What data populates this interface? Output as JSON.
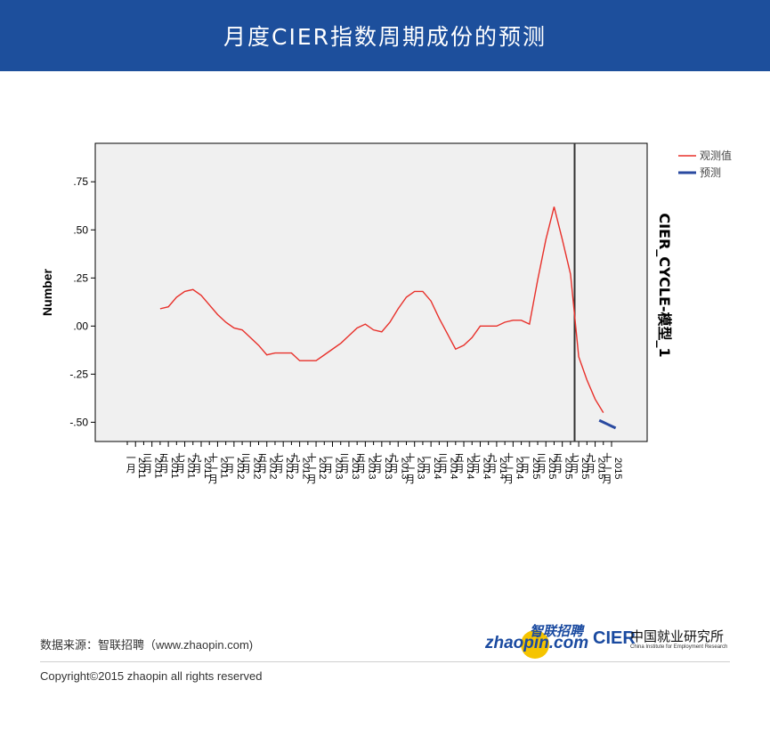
{
  "header": {
    "title": "月度CIER指数周期成份的预测"
  },
  "footer": {
    "source": "数据来源：智联招聘（www.zhaopin.com)",
    "copyright": "Copyright©2015 zhaopin all rights reserved"
  },
  "logos": {
    "zhaopin_cn": "智联招聘",
    "zhaopin_en": "zhaopin.com",
    "cier_mark": "CIER",
    "cier_cn": "中国就业研究所",
    "cier_en": "China Institute for Employment Research"
  },
  "colors": {
    "header_bg": "#1d4f9c",
    "observed": "#e8302a",
    "forecast": "#2a4aa0",
    "plot_bg": "#f0f0f0"
  },
  "chart_data": {
    "type": "line",
    "ylabel": "Number",
    "right_label": "CIER_CYCLE-模型_1",
    "ylim": [
      -0.6,
      0.95
    ],
    "yticks": [
      {
        "value": 0.75,
        "label": ".75"
      },
      {
        "value": 0.5,
        "label": ".50"
      },
      {
        "value": 0.25,
        "label": ".25"
      },
      {
        "value": 0.0,
        "label": ".00"
      },
      {
        "value": -0.25,
        "label": "-.25"
      },
      {
        "value": -0.5,
        "label": "-.50"
      }
    ],
    "x_range": [
      0,
      59
    ],
    "forecast_start": 54.5,
    "xtick_labels": [
      {
        "pos": 1,
        "month": "一月",
        "year": "2011"
      },
      {
        "pos": 3,
        "month": "三月",
        "year": "2011"
      },
      {
        "pos": 5,
        "month": "五月",
        "year": "2011"
      },
      {
        "pos": 7,
        "month": "七月",
        "year": "2011"
      },
      {
        "pos": 9,
        "month": "九月",
        "year": "2011"
      },
      {
        "pos": 11,
        "month": "十一月",
        "year": "2011"
      },
      {
        "pos": 13,
        "month": "一月",
        "year": "2012"
      },
      {
        "pos": 15,
        "month": "三月",
        "year": "2012"
      },
      {
        "pos": 17,
        "month": "五月",
        "year": "2012"
      },
      {
        "pos": 19,
        "month": "七月",
        "year": "2012"
      },
      {
        "pos": 21,
        "month": "九月",
        "year": "2012"
      },
      {
        "pos": 23,
        "month": "十一月",
        "year": "2012"
      },
      {
        "pos": 25,
        "month": "一月",
        "year": "2013"
      },
      {
        "pos": 27,
        "month": "三月",
        "year": "2013"
      },
      {
        "pos": 29,
        "month": "五月",
        "year": "2013"
      },
      {
        "pos": 31,
        "month": "七月",
        "year": "2013"
      },
      {
        "pos": 33,
        "month": "九月",
        "year": "2013"
      },
      {
        "pos": 35,
        "month": "十一月",
        "year": "2013"
      },
      {
        "pos": 37,
        "month": "一月",
        "year": "2014"
      },
      {
        "pos": 39,
        "month": "三月",
        "year": "2014"
      },
      {
        "pos": 41,
        "month": "五月",
        "year": "2014"
      },
      {
        "pos": 43,
        "month": "七月",
        "year": "2014"
      },
      {
        "pos": 45,
        "month": "九月",
        "year": "2014"
      },
      {
        "pos": 47,
        "month": "十一月",
        "year": "2014"
      },
      {
        "pos": 49,
        "month": "一月",
        "year": "2015"
      },
      {
        "pos": 51,
        "month": "三月",
        "year": "2015"
      },
      {
        "pos": 53,
        "month": "五月",
        "year": "2015"
      },
      {
        "pos": 55,
        "month": "七月",
        "year": "2015"
      },
      {
        "pos": 57,
        "month": "九月",
        "year": "2015"
      },
      {
        "pos": 59,
        "month": "十一月",
        "year": "2015"
      }
    ],
    "series": [
      {
        "name": "观测值",
        "color": "#e8302a",
        "x": [
          4,
          5,
          6,
          7,
          8,
          9,
          10,
          11,
          12,
          13,
          14,
          15,
          16,
          17,
          18,
          19,
          20,
          21,
          22,
          23,
          24,
          25,
          26,
          27,
          28,
          29,
          30,
          31,
          32,
          33,
          34,
          35,
          36,
          37,
          38,
          39,
          40,
          41,
          42,
          43,
          44,
          45,
          46,
          47,
          48,
          49,
          50,
          51,
          52,
          53,
          54
        ],
        "values": [
          0.09,
          0.1,
          0.15,
          0.18,
          0.19,
          0.16,
          0.11,
          0.06,
          0.02,
          -0.01,
          -0.02,
          -0.06,
          -0.1,
          -0.15,
          -0.14,
          -0.14,
          -0.14,
          -0.18,
          -0.18,
          -0.18,
          -0.15,
          -0.12,
          -0.09,
          -0.05,
          -0.01,
          0.01,
          -0.02,
          -0.03,
          0.02,
          0.09,
          0.15,
          0.18,
          0.18,
          0.13,
          0.04,
          -0.04,
          -0.12,
          -0.1,
          -0.06,
          0.0,
          0.0,
          0.0,
          0.02,
          0.03,
          0.03,
          0.01,
          0.24,
          0.45,
          0.62,
          0.45,
          0.27
        ]
      },
      {
        "name": "预测",
        "color": "#2a4aa0",
        "x": [
          57.5,
          58,
          58.5,
          59,
          59.5
        ],
        "values": [
          -0.49,
          -0.5,
          -0.51,
          -0.52,
          -0.53
        ]
      }
    ],
    "observed_tail": {
      "x": [
        54,
        55,
        56,
        57,
        58
      ],
      "values": [
        -0.04,
        -0.16,
        -0.28,
        -0.38,
        -0.45
      ]
    },
    "legend_position": "top-right"
  }
}
